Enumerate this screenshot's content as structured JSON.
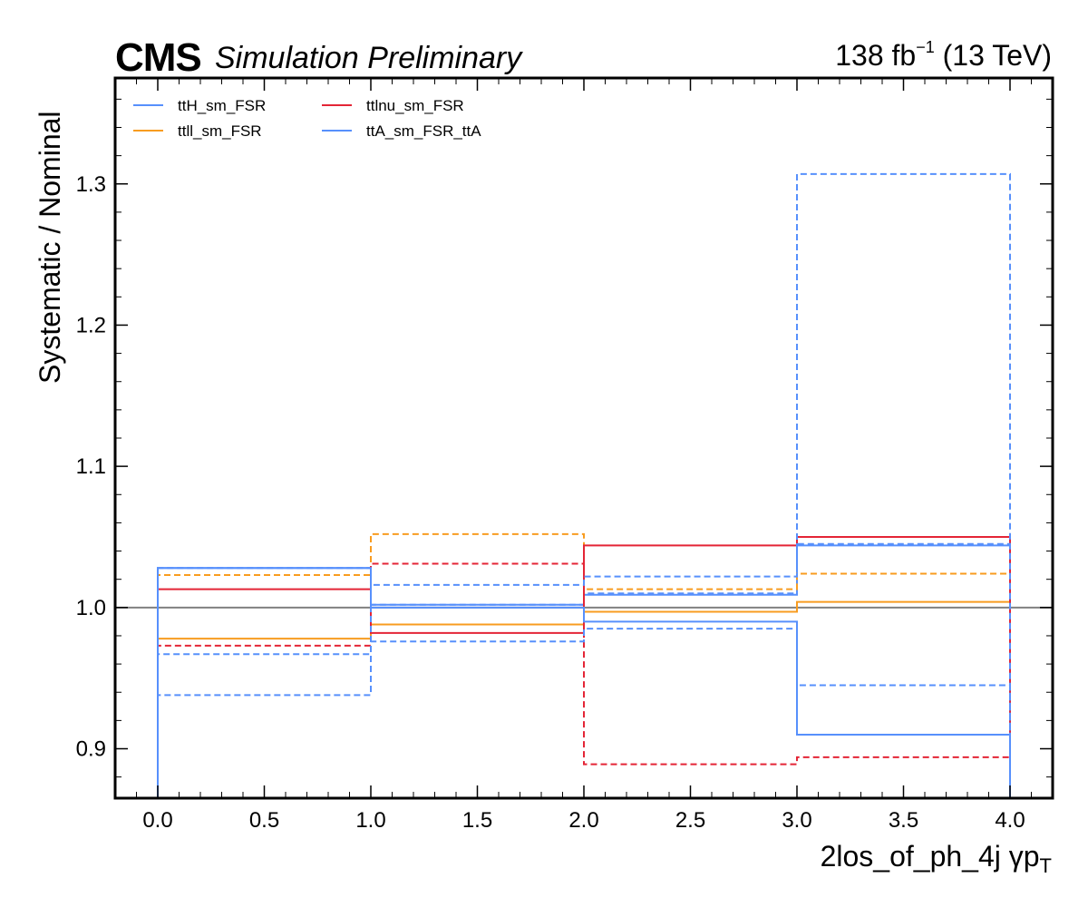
{
  "header": {
    "experiment": "CMS",
    "status": "Simulation Preliminary",
    "lumi": "138 fb",
    "lumi_sup": "−1",
    "energy": " (13 TeV)"
  },
  "chart_data": {
    "type": "line",
    "drawstyle": "steps",
    "xlabel": "2los_of_ph_4j   γp",
    "xlabel_sub": "T",
    "ylabel": "Systematic / Nominal",
    "xlim": [
      -0.2,
      4.2
    ],
    "ylim": [
      0.865,
      1.375
    ],
    "xticks": [
      0.0,
      0.5,
      1.0,
      1.5,
      2.0,
      2.5,
      3.0,
      3.5,
      4.0
    ],
    "xtick_labels": [
      "0.0",
      "0.5",
      "1.0",
      "1.5",
      "2.0",
      "2.5",
      "3.0",
      "3.5",
      "4.0"
    ],
    "yticks": [
      0.9,
      1.0,
      1.1,
      1.2,
      1.3
    ],
    "ytick_labels": [
      "0.9",
      "1.0",
      "1.1",
      "1.2",
      "1.3"
    ],
    "reference_line": 1.0,
    "bin_edges": [
      0,
      1,
      2,
      3,
      4
    ],
    "legend_position": "top-left",
    "legend_columns": 2,
    "series": [
      {
        "name": "ttH_sm_FSR",
        "color": "#5790fc",
        "style": "solid",
        "values": [
          1.028,
          1.002,
          1.009,
          1.044
        ]
      },
      {
        "name": "",
        "color": "#5790fc",
        "style": "dashed",
        "values": [
          1.028,
          1.002,
          1.01,
          1.045
        ]
      },
      {
        "name": "ttll_sm_FSR",
        "color": "#f89c20",
        "style": "solid",
        "values": [
          0.978,
          0.988,
          0.997,
          1.004
        ]
      },
      {
        "name": "",
        "color": "#f89c20",
        "style": "dashed",
        "values": [
          1.023,
          1.052,
          1.013,
          1.024
        ]
      },
      {
        "name": "ttlnu_sm_FSR",
        "color": "#e42536",
        "style": "solid",
        "values": [
          1.013,
          0.982,
          1.044,
          1.05
        ]
      },
      {
        "name": "",
        "color": "#e42536",
        "style": "dashed",
        "values": [
          0.973,
          1.031,
          0.889,
          0.894
        ]
      },
      {
        "name": "ttA_sm_FSR_ttA",
        "color": "#5790fc",
        "style": "solid",
        "values": [
          1.028,
          1.0,
          0.99,
          0.91
        ]
      },
      {
        "name": "",
        "color": "#5790fc",
        "style": "dashed",
        "values": [
          0.967,
          1.016,
          1.022,
          1.307
        ]
      },
      {
        "name": "",
        "color": "#5790fc",
        "style": "dashed",
        "values": [
          0.938,
          0.976,
          0.985,
          0.945
        ]
      }
    ]
  }
}
